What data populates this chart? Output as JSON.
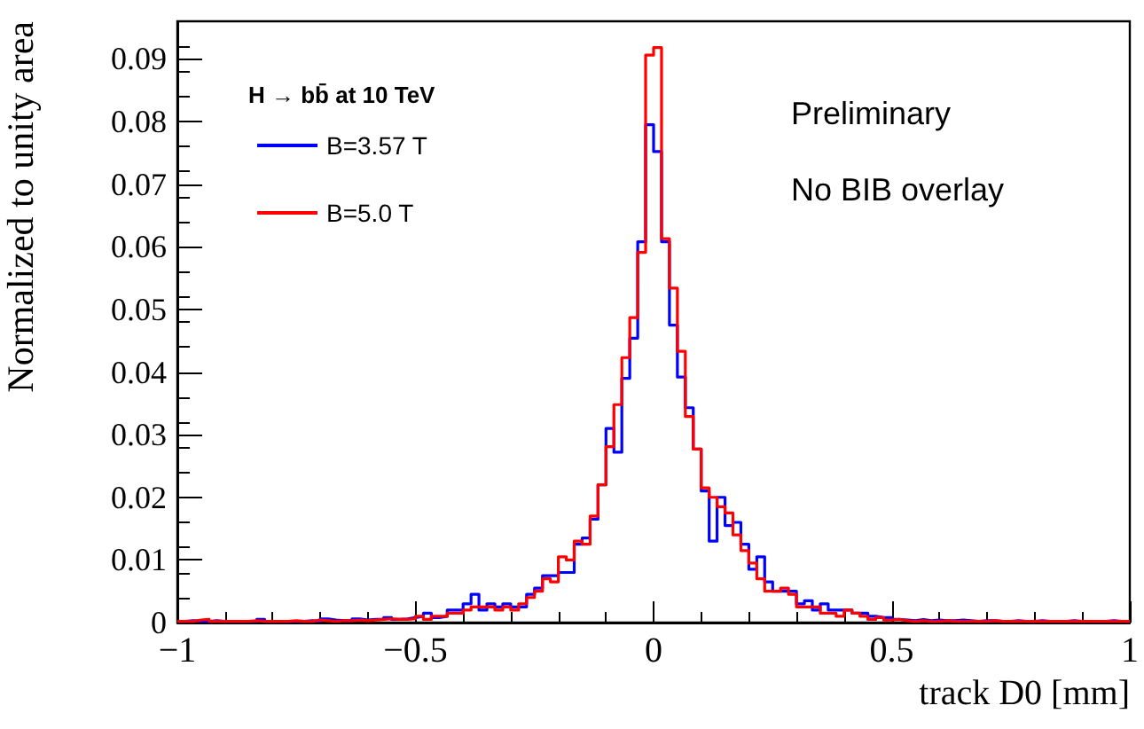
{
  "chart_data": {
    "type": "histogram",
    "legend_title": "H → bb̄ at 10 TeV",
    "annotations": [
      "Preliminary",
      "No BIB overlay"
    ],
    "xlabel": "track D0 [mm]",
    "ylabel": "Normalized to unity area",
    "xlim": [
      -1,
      1
    ],
    "xticks": [
      -1,
      -0.5,
      0,
      0.5,
      1
    ],
    "ylim": [
      0,
      0.096
    ],
    "yticks": [
      0,
      0.01,
      0.02,
      0.03,
      0.04,
      0.05,
      0.06,
      0.07,
      0.08,
      0.09
    ],
    "legend": "top left",
    "grid": false,
    "bins": [
      -1,
      -0.9833,
      -0.9667,
      -0.95,
      -0.9333,
      -0.9167,
      -0.9,
      -0.8833,
      -0.8667,
      -0.85,
      -0.8333,
      -0.8167,
      -0.8,
      -0.7833,
      -0.7667,
      -0.75,
      -0.7333,
      -0.7167,
      -0.7,
      -0.6833,
      -0.6667,
      -0.65,
      -0.6333,
      -0.6167,
      -0.6,
      -0.5833,
      -0.5667,
      -0.55,
      -0.5333,
      -0.5167,
      -0.5,
      -0.4833,
      -0.4667,
      -0.45,
      -0.4333,
      -0.4167,
      -0.4,
      -0.3833,
      -0.3667,
      -0.35,
      -0.3333,
      -0.3167,
      -0.3,
      -0.2833,
      -0.2667,
      -0.25,
      -0.2333,
      -0.2167,
      -0.2,
      -0.1833,
      -0.1667,
      -0.15,
      -0.1333,
      -0.1167,
      -0.1,
      -0.0833,
      -0.0667,
      -0.05,
      -0.0333,
      -0.0167,
      0,
      0.0167,
      0.0333,
      0.05,
      0.0667,
      0.0833,
      0.1,
      0.1167,
      0.1333,
      0.15,
      0.1667,
      0.1833,
      0.2,
      0.2167,
      0.2333,
      0.25,
      0.2667,
      0.2833,
      0.3,
      0.3167,
      0.3333,
      0.35,
      0.3667,
      0.3833,
      0.4,
      0.4167,
      0.4333,
      0.45,
      0.4667,
      0.4833,
      0.5,
      0.5167,
      0.5333,
      0.55,
      0.5667,
      0.5833,
      0.6,
      0.6167,
      0.6333,
      0.65,
      0.6667,
      0.6833,
      0.7,
      0.7167,
      0.7333,
      0.75,
      0.7667,
      0.7833,
      0.8,
      0.8167,
      0.8333,
      0.85,
      0.8667,
      0.8833,
      0.9,
      0.9167,
      0.9333,
      0.95,
      0.9667,
      0.9833,
      1
    ],
    "series": [
      {
        "name": "B=3.57 T",
        "color": "#0000ff",
        "values": [
          0.0002,
          0.0003,
          0.0002,
          0.0002,
          0.0003,
          0.0002,
          0.0002,
          0.0002,
          0.0002,
          0.0002,
          0.0005,
          0.0002,
          0.0002,
          0.0002,
          0.0002,
          0.0002,
          0.0003,
          0.0002,
          0.0006,
          0.0004,
          0.0003,
          0.0003,
          0.0006,
          0.0004,
          0.0005,
          0.0005,
          0.0008,
          0.0005,
          0.0006,
          0.0008,
          0.001,
          0.0015,
          0.0008,
          0.001,
          0.002,
          0.002,
          0.003,
          0.0045,
          0.002,
          0.003,
          0.0025,
          0.003,
          0.0025,
          0.0025,
          0.0045,
          0.0055,
          0.0075,
          0.0075,
          0.008,
          0.008,
          0.0125,
          0.0135,
          0.0165,
          0.022,
          0.031,
          0.0272,
          0.039,
          0.0454,
          0.0608,
          0.0795,
          0.0752,
          0.0608,
          0.0475,
          0.0392,
          0.0343,
          0.0277,
          0.021,
          0.013,
          0.02,
          0.0155,
          0.016,
          0.0125,
          0.0085,
          0.0105,
          0.0065,
          0.005,
          0.005,
          0.005,
          0.003,
          0.0035,
          0.002,
          0.003,
          0.002,
          0.002,
          0.002,
          0.0015,
          0.0015,
          0.001,
          0.0008,
          0.0008,
          0.0005,
          0.0004,
          0.0003,
          0.0005,
          0.0003,
          0.0004,
          0.0003,
          0.0003,
          0.0004,
          0.0003,
          0.0002,
          0.0003,
          0.0003,
          0.0002,
          0.0002,
          0.0003,
          0.0002,
          0.0002,
          0.0003,
          0.0002,
          0.0002,
          0.0002,
          0.0003,
          0.0002,
          0.0002,
          0.0002,
          0.0002,
          0.0003,
          0.0002,
          0.0002
        ]
      },
      {
        "name": "B=5.0 T",
        "color": "#ff0000",
        "values": [
          0.0002,
          0.0002,
          0.0004,
          0.0005,
          0.0002,
          0.0002,
          0.0002,
          0.0002,
          0.0002,
          0.0003,
          0.0002,
          0.0002,
          0.0002,
          0.0002,
          0.0003,
          0.0002,
          0.0002,
          0.0004,
          0.0003,
          0.0002,
          0.0003,
          0.0003,
          0.0004,
          0.0003,
          0.0004,
          0.0005,
          0.0006,
          0.0005,
          0.0005,
          0.0006,
          0.001,
          0.0005,
          0.001,
          0.001,
          0.0015,
          0.0015,
          0.002,
          0.0025,
          0.0025,
          0.0025,
          0.002,
          0.0025,
          0.002,
          0.003,
          0.004,
          0.005,
          0.007,
          0.0065,
          0.0105,
          0.01,
          0.013,
          0.0125,
          0.017,
          0.022,
          0.0281,
          0.0348,
          0.0423,
          0.0487,
          0.0591,
          0.0906,
          0.0918,
          0.0613,
          0.0534,
          0.0433,
          0.0329,
          0.0277,
          0.0215,
          0.02,
          0.0185,
          0.0175,
          0.014,
          0.0115,
          0.0095,
          0.007,
          0.005,
          0.005,
          0.0055,
          0.0045,
          0.0025,
          0.0025,
          0.0025,
          0.0015,
          0.0015,
          0.001,
          0.002,
          0.0015,
          0.001,
          0.0005,
          0.0008,
          0.0004,
          0.0005,
          0.0003,
          0.0002,
          0.0003,
          0.0002,
          0.0002,
          0.0003,
          0.0002,
          0.0002,
          0.0002,
          0.0002,
          0.0002,
          0.0003,
          0.0002,
          0.0002,
          0.0002,
          0.0002,
          0.0002,
          0.0002,
          0.0002,
          0.0002,
          0.0002,
          0.0002,
          0.0002,
          0.0002,
          0.0002,
          0.0002,
          0.0002,
          0.0002,
          0.0002
        ]
      }
    ]
  }
}
